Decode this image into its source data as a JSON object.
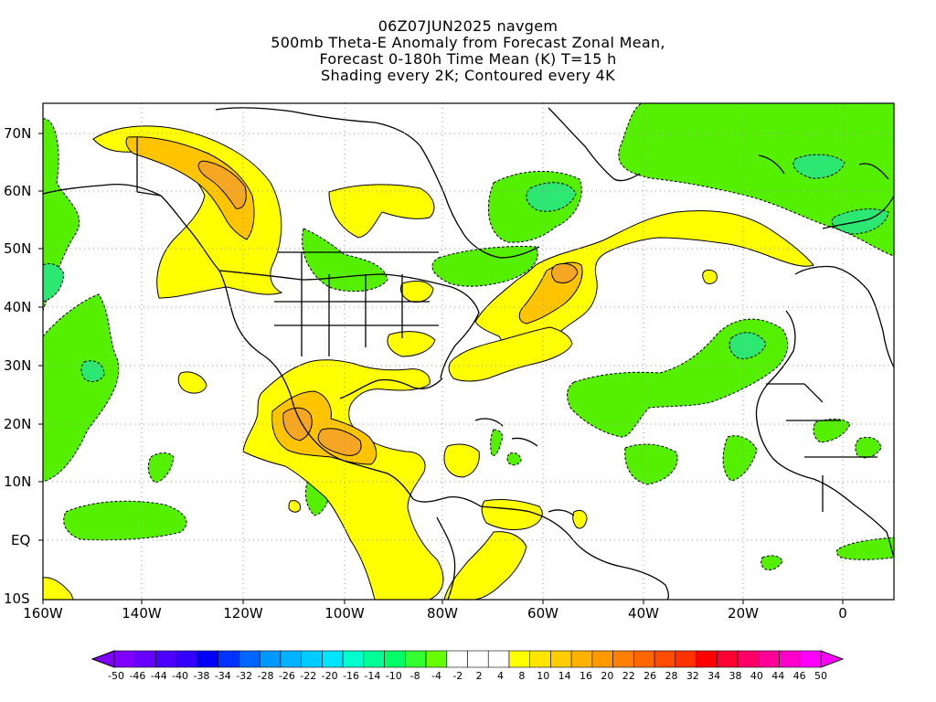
{
  "title": {
    "line1": "06Z07JUN2025 navgem",
    "line2": "500mb Theta-E Anomaly from Forecast Zonal Mean,",
    "line3": "Forecast 0-180h Time Mean (K) T=15 h",
    "line4": "Shading every 2K; Contoured every 4K"
  },
  "map": {
    "lat_labels": [
      "70N",
      "60N",
      "50N",
      "40N",
      "30N",
      "20N",
      "10N",
      "EQ",
      "10S"
    ],
    "lon_labels": [
      "160W",
      "140W",
      "120W",
      "100W",
      "80W",
      "60W",
      "40W",
      "20W",
      "0"
    ],
    "lon_range": [
      -160,
      8
    ],
    "lat_range": [
      -10,
      75
    ],
    "grid": "dotted"
  },
  "colorbar": {
    "labels": [
      "-50",
      "-46",
      "-44",
      "-40",
      "-38",
      "-34",
      "-32",
      "-28",
      "-26",
      "-22",
      "-20",
      "-16",
      "-14",
      "-10",
      "-8",
      "-4",
      "-2",
      "2",
      "4",
      "8",
      "10",
      "14",
      "16",
      "20",
      "22",
      "26",
      "28",
      "32",
      "34",
      "38",
      "40",
      "44",
      "46",
      "50"
    ],
    "colors": [
      "#8000ff",
      "#6600ff",
      "#4c00ff",
      "#3300ff",
      "#0000ff",
      "#0033ff",
      "#0066ff",
      "#0099ff",
      "#00b2ff",
      "#00ccff",
      "#00e5ff",
      "#00ffcc",
      "#00ff99",
      "#00ff66",
      "#33ff33",
      "#66ff00",
      "#ffffff",
      "#ffffff",
      "#ffffff",
      "#ffff00",
      "#ffe500",
      "#ffcc00",
      "#ffb200",
      "#ff9900",
      "#ff7f00",
      "#ff6600",
      "#ff4c00",
      "#ff3300",
      "#ff0000",
      "#ff0033",
      "#ff0066",
      "#ff0099",
      "#ff00cc",
      "#ff00ff"
    ]
  },
  "colors": {
    "green": "#55f000",
    "green_dark": "#2ce872",
    "yellow": "#ffff00",
    "orange_light": "#ffc400",
    "orange": "#f5a623"
  }
}
